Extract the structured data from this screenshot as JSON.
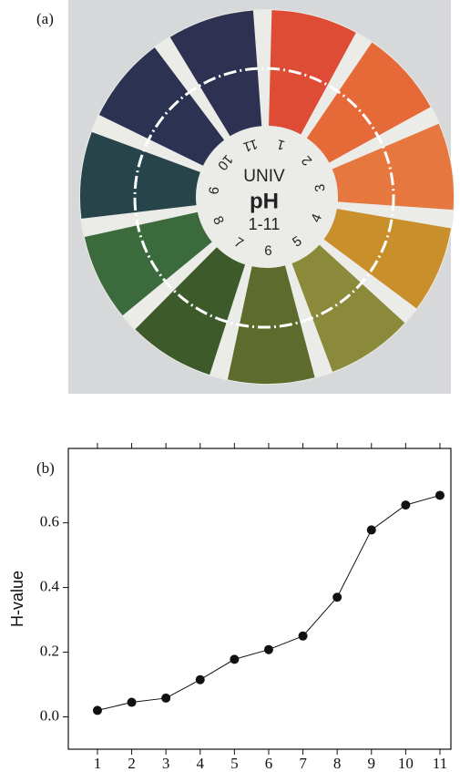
{
  "panel_a": {
    "label": "(a)",
    "wheel_text": [
      "UNIV",
      "pH",
      "1-11"
    ],
    "numbers": [
      "1",
      "2",
      "3",
      "4",
      "5",
      "6",
      "7",
      "8",
      "9",
      "10",
      "11"
    ]
  },
  "chart_data": {
    "type": "line",
    "panel_label": "(b)",
    "y_label": "H-value",
    "x": [
      1,
      2,
      3,
      4,
      5,
      6,
      7,
      8,
      9,
      10,
      11
    ],
    "series": [
      {
        "color": "#111111",
        "values": [
          0.02,
          0.045,
          0.058,
          0.115,
          0.178,
          0.208,
          0.25,
          0.37,
          0.578,
          0.655,
          0.685
        ]
      }
    ],
    "xlim": [
      0.15,
      11.32
    ],
    "ylim": [
      -0.1,
      0.83
    ],
    "xticks": [
      1,
      2,
      3,
      4,
      5,
      6,
      7,
      8,
      9,
      10,
      11
    ],
    "yticks": [
      {
        "value": 0,
        "label": "0.0"
      },
      {
        "value": 0.2,
        "label": "0.2"
      },
      {
        "value": 0.4,
        "label": "0.4"
      },
      {
        "value": 0.6,
        "label": "0.6"
      }
    ]
  }
}
